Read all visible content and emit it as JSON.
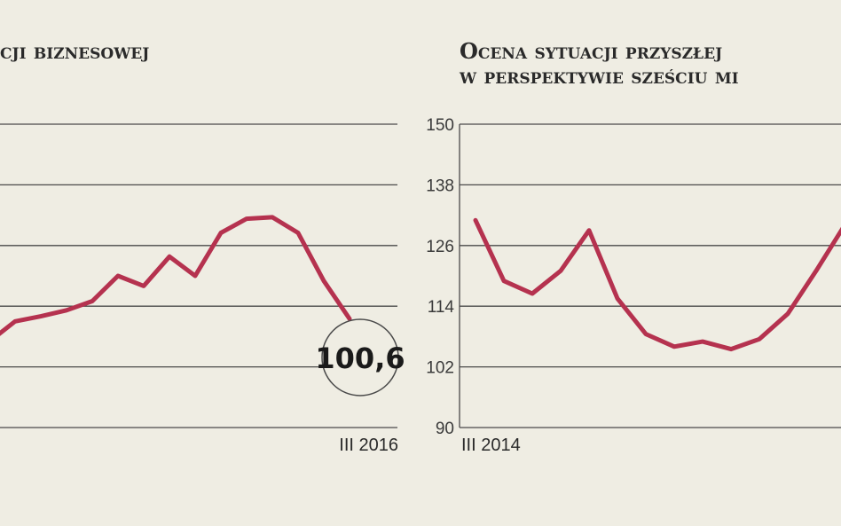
{
  "colors": {
    "background": "#efede3",
    "line": "#b5324f",
    "grid": "#4a4a4a",
    "text": "#2a2a2a"
  },
  "chart_data": [
    {
      "type": "line",
      "title_lines": [
        "cji biznesowej"
      ],
      "xlabel": "",
      "ylabel": "",
      "end_label": "III 2016",
      "ylim": [
        90,
        150
      ],
      "yticks": [
        90,
        102,
        114,
        126,
        138,
        150
      ],
      "show_ytick_labels": false,
      "grid": true,
      "series": [
        {
          "values": [
            107,
            111,
            112,
            113.2,
            115,
            120,
            118,
            123.8,
            120,
            128.5,
            131.3,
            131.6,
            128.5,
            119,
            111.5
          ]
        }
      ],
      "callout": {
        "value": "100,6"
      }
    },
    {
      "type": "line",
      "title_lines": [
        "Ocena sytuacji przyszłej",
        "w perspektywie sześciu mi"
      ],
      "xlabel": "",
      "ylabel": "",
      "start_label": "III 2014",
      "ylim": [
        90,
        150
      ],
      "yticks": [
        90,
        102,
        114,
        126,
        138,
        150
      ],
      "show_ytick_labels": true,
      "grid": true,
      "series": [
        {
          "values": [
            131,
            119,
            116.5,
            121,
            129,
            115.5,
            108.5,
            106,
            107,
            105.5,
            107.5,
            112.5,
            121,
            130
          ]
        }
      ]
    }
  ]
}
